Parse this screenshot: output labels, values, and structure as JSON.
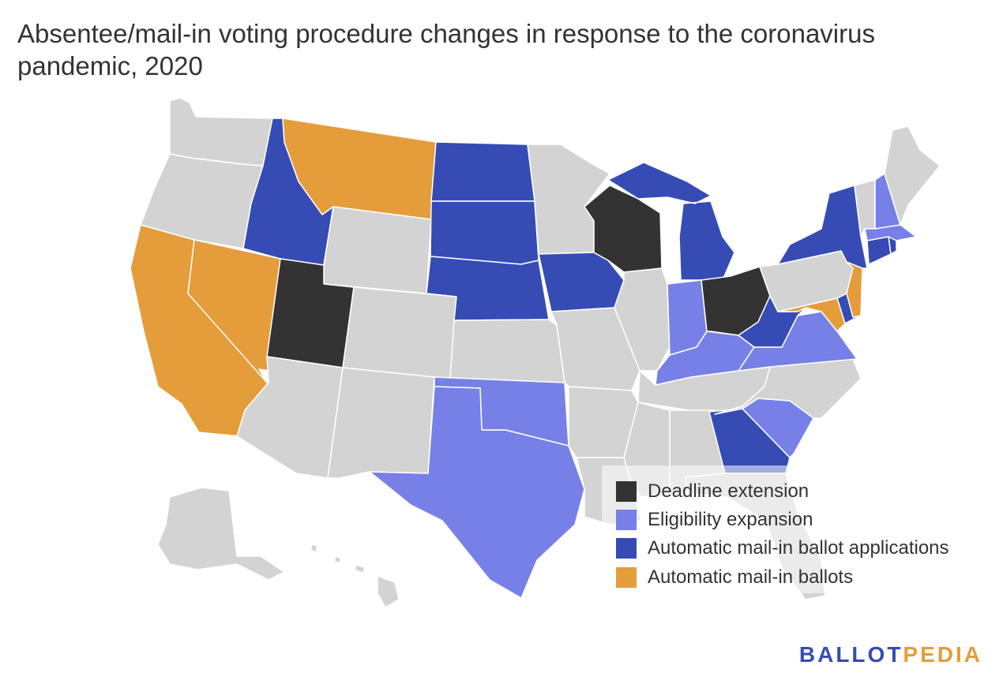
{
  "title": "Absentee/mail-in voting procedure changes in response to the coronavirus pandemic, 2020",
  "colors": {
    "none": "#d3d3d3",
    "deadline": "#333333",
    "eligibility": "#7780e6",
    "applications": "#364cb4",
    "ballots": "#e59c3a",
    "border": "#ffffff",
    "logo_blue": "#364cb4",
    "logo_orange": "#e59c3a"
  },
  "legend": [
    {
      "key": "deadline",
      "label": "Deadline extension"
    },
    {
      "key": "eligibility",
      "label": "Eligibility expansion"
    },
    {
      "key": "applications",
      "label": "Automatic mail-in ballot applications"
    },
    {
      "key": "ballots",
      "label": "Automatic mail-in ballots"
    }
  ],
  "states": {
    "WA": "none",
    "OR": "none",
    "CA": "ballots",
    "NV": "ballots",
    "ID": "applications",
    "MT": "ballots",
    "WY": "none",
    "UT": "deadline",
    "AZ": "none",
    "CO": "none",
    "NM": "none",
    "ND": "applications",
    "SD": "applications",
    "NE": "applications",
    "KS": "none",
    "OK": "eligibility",
    "TX": "eligibility",
    "MN": "none",
    "IA": "applications",
    "MO": "none",
    "AR": "none",
    "LA": "none",
    "WI": "deadline",
    "IL": "none",
    "MI": "applications",
    "IN": "eligibility",
    "OH": "deadline",
    "KY": "eligibility",
    "TN": "none",
    "MS": "none",
    "AL": "none",
    "GA": "applications",
    "FL": "none",
    "SC": "eligibility",
    "NC": "none",
    "VA": "eligibility",
    "WV": "applications",
    "MD": "ballots",
    "DE": "applications",
    "NJ": "ballots",
    "PA": "none",
    "NY": "applications",
    "CT": "applications",
    "RI": "applications",
    "MA": "eligibility",
    "VT": "none",
    "NH": "eligibility",
    "ME": "none",
    "AK": "none",
    "HI": "none"
  },
  "logo": {
    "part1": "BALLOT",
    "part2": "PEDIA"
  }
}
